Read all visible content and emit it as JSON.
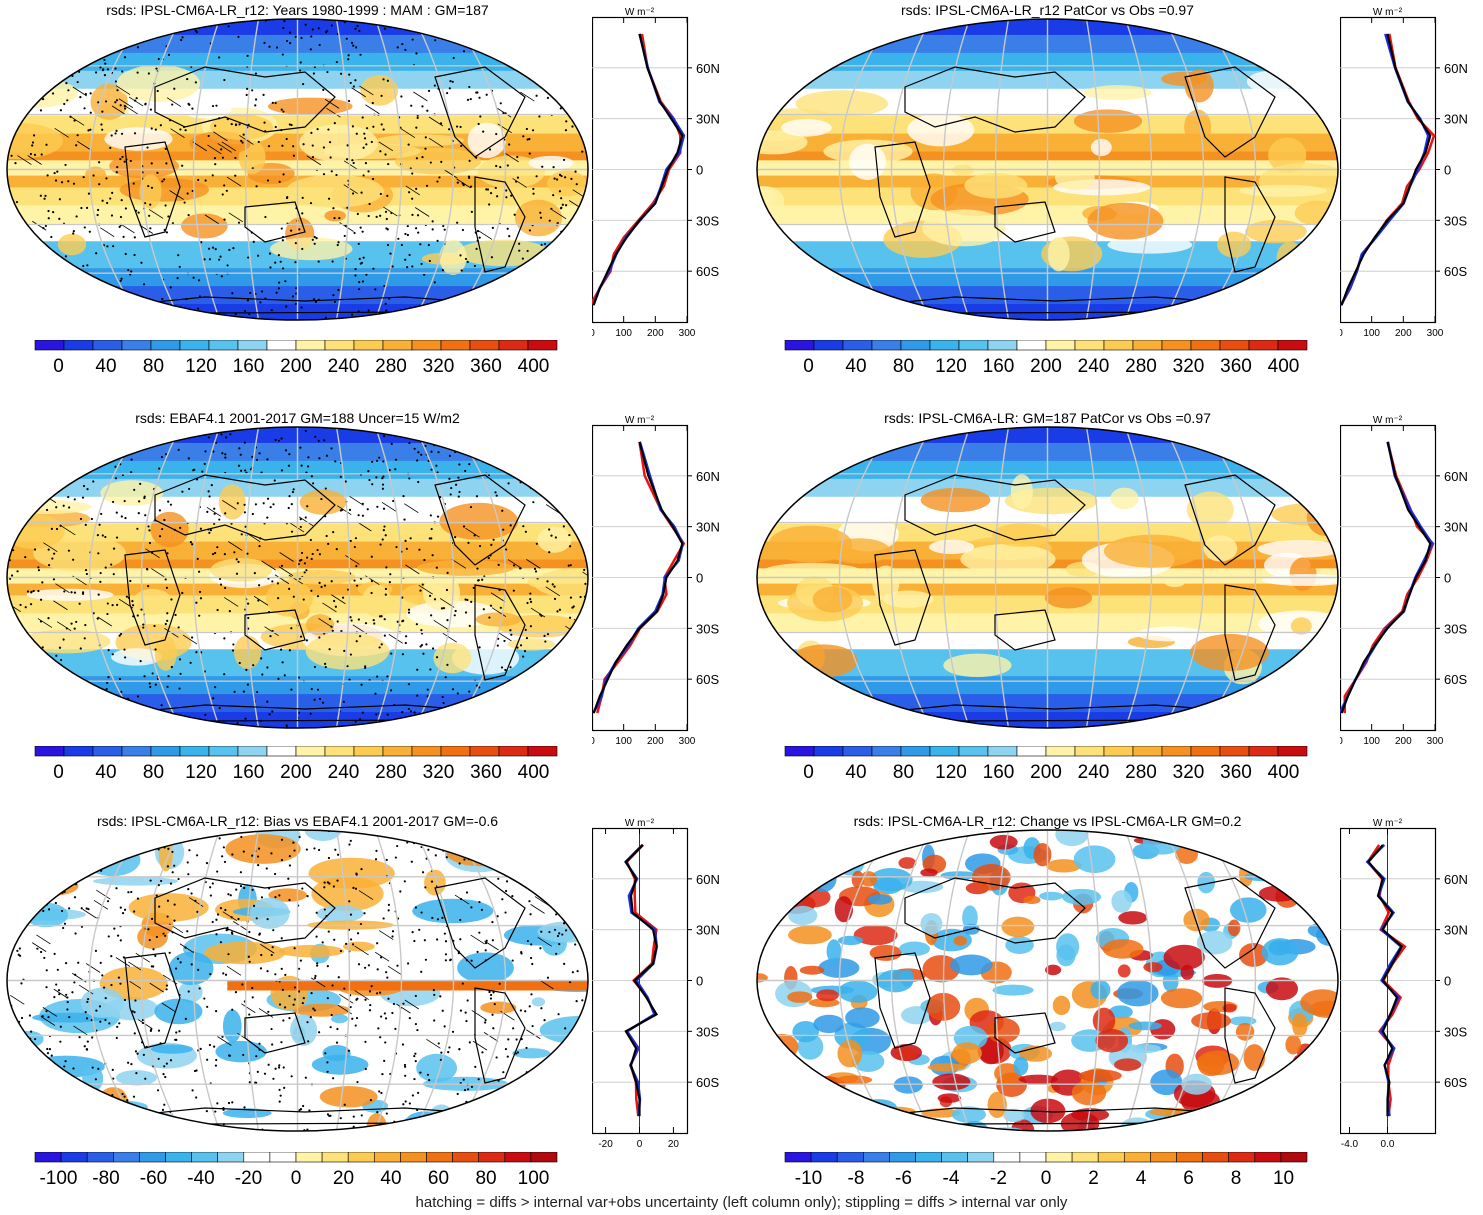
{
  "footer": "hatching = diffs > internal var+obs uncertainty (left column only); stippling = diffs > internal var only",
  "colors": {
    "abs_scale": [
      "#2a14e0",
      "#1a3ce6",
      "#2a5ee8",
      "#3a7fe8",
      "#2f9ae8",
      "#3ab2ec",
      "#58c2ee",
      "#8ed3f0",
      "#ffffff",
      "#fff3a8",
      "#fde27a",
      "#fccc52",
      "#f9b036",
      "#f59120",
      "#f07012",
      "#e84e10",
      "#dd2a14",
      "#c80c10"
    ],
    "bias_scale": [
      "#2a14e0",
      "#1a3ce6",
      "#2a5ee8",
      "#3a7fe8",
      "#2f9ae8",
      "#3ab2ec",
      "#58c2ee",
      "#8ed3f0",
      "#ffffff",
      "#ffffff",
      "#fff3a8",
      "#fde27a",
      "#fccc52",
      "#f9b036",
      "#f59120",
      "#f07012",
      "#e84e10",
      "#dd2a14",
      "#c80c10",
      "#b00a0e"
    ],
    "profile_model": "#000000",
    "profile_obs": "#ee1111",
    "profile_other": "#1a2ee8",
    "grid": "#c8c8c8",
    "coast": "#000000"
  },
  "panels": [
    {
      "title": "rsds: IPSL-CM6A-LR_r12: Years 1980-1999 : MAM : GM=187",
      "cbar_ticks": [
        "0",
        "40",
        "80",
        "120",
        "160",
        "200",
        "240",
        "280",
        "320",
        "360",
        "400"
      ],
      "prof_xticks": [
        "0",
        "100",
        "200",
        "300"
      ],
      "prof_yticks": [
        "60N",
        "30N",
        "0",
        "30S",
        "60S"
      ],
      "prof_unit": "W m⁻²"
    },
    {
      "title": "rsds: IPSL-CM6A-LR_r12 PatCor vs Obs =0.97",
      "cbar_ticks": [
        "0",
        "40",
        "80",
        "120",
        "160",
        "200",
        "240",
        "280",
        "320",
        "360",
        "400"
      ],
      "prof_xticks": [
        "0",
        "100",
        "200",
        "300"
      ],
      "prof_yticks": [
        "60N",
        "30N",
        "0",
        "30S",
        "60S"
      ],
      "prof_unit": "W m⁻²"
    },
    {
      "title": "rsds: EBAF4.1 2001-2017 GM=188 Uncer=15 W/m2",
      "cbar_ticks": [
        "0",
        "40",
        "80",
        "120",
        "160",
        "200",
        "240",
        "280",
        "320",
        "360",
        "400"
      ],
      "prof_xticks": [
        "0",
        "100",
        "200",
        "300"
      ],
      "prof_yticks": [
        "60N",
        "30N",
        "0",
        "30S",
        "60S"
      ],
      "prof_unit": "W m⁻²"
    },
    {
      "title": "rsds: IPSL-CM6A-LR: GM=187 PatCor vs Obs =0.97",
      "cbar_ticks": [
        "0",
        "40",
        "80",
        "120",
        "160",
        "200",
        "240",
        "280",
        "320",
        "360",
        "400"
      ],
      "prof_xticks": [
        "0",
        "100",
        "200",
        "300"
      ],
      "prof_yticks": [
        "60N",
        "30N",
        "0",
        "30S",
        "60S"
      ],
      "prof_unit": "W m⁻²"
    },
    {
      "title": "rsds: IPSL-CM6A-LR_r12: Bias vs EBAF4.1 2001-2017 GM=-0.6",
      "cbar_ticks": [
        "-100",
        "-80",
        "-60",
        "-40",
        "-20",
        "0",
        "20",
        "40",
        "60",
        "80",
        "100"
      ],
      "prof_xticks": [
        "-20",
        "0",
        "20"
      ],
      "prof_yticks": [
        "60N",
        "30N",
        "0",
        "30S",
        "60S"
      ],
      "prof_unit": "W m⁻²"
    },
    {
      "title": "rsds: IPSL-CM6A-LR_r12: Change vs IPSL-CM6A-LR GM=0.2",
      "cbar_ticks": [
        "-10",
        "-8",
        "-6",
        "-4",
        "-2",
        "0",
        "2",
        "4",
        "6",
        "8",
        "10"
      ],
      "prof_xticks": [
        "-4.0",
        "0.0"
      ],
      "prof_yticks": [
        "60N",
        "30N",
        "0",
        "30S",
        "60S"
      ],
      "prof_unit": "W m⁻²"
    }
  ],
  "chart_data": [
    {
      "type": "heatmap",
      "title": "rsds: IPSL-CM6A-LR_r12: Years 1980-1999 : MAM : GM=187",
      "colorbar": {
        "min": 0,
        "max": 400,
        "step": 20
      },
      "zonal_profile": {
        "lat": [
          80,
          60,
          40,
          30,
          20,
          10,
          0,
          -10,
          -20,
          -30,
          -40,
          -50,
          -60,
          -70,
          -80
        ],
        "series": [
          {
            "name": "",
            "values": [
              150,
              175,
              215,
              250,
              285,
              270,
              240,
              220,
              200,
              150,
              110,
              75,
              50,
              25,
              5
            ]
          }
        ],
        "xlim": [
          0,
          300
        ]
      }
    },
    {
      "type": "heatmap",
      "title": "rsds: IPSL-CM6A-LR_r12 PatCor vs Obs =0.97",
      "colorbar": {
        "min": 0,
        "max": 400,
        "step": 20
      },
      "zonal_profile": {
        "lat": [
          80,
          60,
          40,
          30,
          20,
          10,
          0,
          -10,
          -20,
          -30,
          -40,
          -50,
          -60,
          -70,
          -80
        ],
        "series": [
          {
            "name": "",
            "values": [
              150,
              175,
              215,
              250,
              285,
              270,
              240,
              220,
              200,
              150,
              110,
              75,
              50,
              25,
              5
            ]
          }
        ],
        "xlim": [
          0,
          300
        ]
      }
    },
    {
      "type": "heatmap",
      "title": "rsds: EBAF4.1 2001-2017 GM=188 Uncer=15 W/m2",
      "colorbar": {
        "min": 0,
        "max": 400,
        "step": 20
      },
      "zonal_profile": {
        "lat": [
          80,
          60,
          40,
          30,
          20,
          10,
          0,
          -10,
          -20,
          -30,
          -40,
          -50,
          -60,
          -70,
          -80
        ],
        "series": [
          {
            "name": "",
            "values": [
              150,
              178,
              220,
              255,
              285,
              270,
              235,
              225,
              205,
              150,
              110,
              75,
              50,
              25,
              5
            ]
          }
        ],
        "xlim": [
          0,
          300
        ]
      }
    },
    {
      "type": "heatmap",
      "title": "rsds: IPSL-CM6A-LR: GM=187 PatCor vs Obs =0.97",
      "colorbar": {
        "min": 0,
        "max": 400,
        "step": 20
      },
      "zonal_profile": {
        "lat": [
          80,
          60,
          40,
          30,
          20,
          10,
          0,
          -10,
          -20,
          -30,
          -40,
          -50,
          -60,
          -70,
          -80
        ],
        "series": [
          {
            "name": "",
            "values": [
              150,
              175,
              215,
              250,
              285,
              270,
              240,
              220,
              200,
              150,
              110,
              75,
              50,
              25,
              5
            ]
          }
        ],
        "xlim": [
          0,
          300
        ]
      }
    },
    {
      "type": "heatmap",
      "title": "rsds: IPSL-CM6A-LR_r12: Bias vs EBAF4.1 2001-2017 GM=-0.6",
      "colorbar": {
        "min": -100,
        "max": 100,
        "step": 10
      },
      "zonal_profile": {
        "lat": [
          80,
          70,
          60,
          50,
          40,
          30,
          20,
          10,
          0,
          -10,
          -20,
          -30,
          -40,
          -50,
          -60,
          -70,
          -80
        ],
        "series": [
          {
            "name": "",
            "values": [
              2,
              -8,
              -2,
              -5,
              -4,
              8,
              10,
              8,
              -3,
              4,
              10,
              -8,
              -2,
              -5,
              -2,
              0,
              0
            ]
          }
        ],
        "xlim": [
          -28,
          28
        ]
      }
    },
    {
      "type": "heatmap",
      "title": "rsds: IPSL-CM6A-LR_r12: Change vs IPSL-CM6A-LR GM=0.2",
      "colorbar": {
        "min": -11,
        "max": 11,
        "step": 1
      },
      "zonal_profile": {
        "lat": [
          80,
          70,
          60,
          50,
          40,
          30,
          20,
          10,
          0,
          -10,
          -20,
          -30,
          -40,
          -50,
          -60,
          -70,
          -80
        ],
        "series": [
          {
            "name": "",
            "values": [
              -0.5,
              -2,
              -0.5,
              -1,
              0.5,
              -0.5,
              1.5,
              0.5,
              -0.5,
              1,
              0.3,
              -0.5,
              0.5,
              -0.3,
              0.2,
              0,
              0
            ]
          }
        ],
        "xlim": [
          -5,
          5
        ]
      }
    }
  ]
}
